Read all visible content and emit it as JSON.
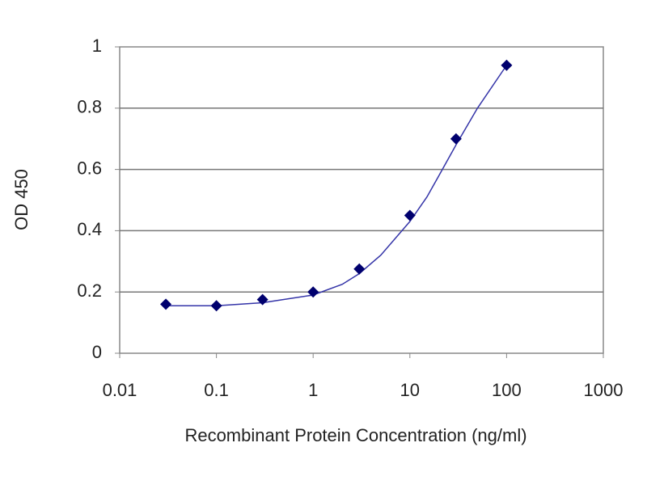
{
  "chart_data": {
    "type": "scatter",
    "xlabel": "Recombinant Protein Concentration (ng/ml)",
    "ylabel": "OD 450",
    "x": [
      0.03,
      0.1,
      0.3,
      1,
      3,
      10,
      30,
      100
    ],
    "values": [
      0.16,
      0.155,
      0.175,
      0.2,
      0.275,
      0.45,
      0.7,
      0.94
    ],
    "fit_x": [
      0.03,
      0.1,
      0.3,
      1,
      2,
      3,
      5,
      10,
      15,
      20,
      30,
      50,
      100
    ],
    "fit_values": [
      0.155,
      0.155,
      0.165,
      0.19,
      0.225,
      0.26,
      0.32,
      0.43,
      0.51,
      0.58,
      0.68,
      0.8,
      0.94
    ],
    "color": "#00006e",
    "line_color": "#3434a8",
    "xscale": "log",
    "xlim": [
      0.01,
      1000
    ],
    "xticks": [
      0.01,
      0.1,
      1,
      10,
      100,
      1000
    ],
    "ylim": [
      0,
      1
    ],
    "yticks": [
      0,
      0.2,
      0.4,
      0.6,
      0.8,
      1
    ],
    "grid": true
  }
}
